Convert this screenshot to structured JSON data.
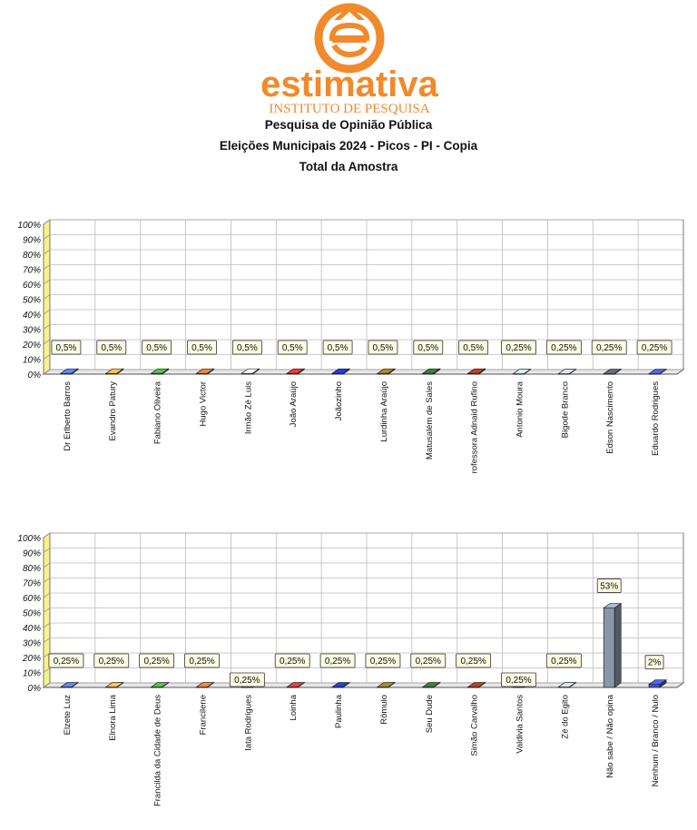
{
  "logo": {
    "brand": "estimativa",
    "subtitle": "INSTITUTO DE PESQUISA",
    "brand_color": "#f08a2c"
  },
  "header": {
    "line1": "Pesquisa de Opinião Pública",
    "line2": "Eleições Municipais 2024 - Picos - PI - Copia",
    "line3": "Total da Amostra"
  },
  "chart_data": [
    {
      "type": "bar",
      "ylim": [
        0,
        100
      ],
      "yticks": [
        "0%",
        "10%",
        "20%",
        "30%",
        "40%",
        "50%",
        "60%",
        "70%",
        "80%",
        "90%",
        "100%"
      ],
      "grid": true,
      "categories": [
        "Dr Erlberto Barros",
        "Evandro Patury",
        "Fabiano Oliveira",
        "Hugo Victor",
        "Irmão Zé Luis",
        "João Araújo",
        "Joãozinho",
        "Lurdinha Araújo",
        "Matusalém de Sales",
        "rofessora Adnaid Rufino",
        "Antonio Moura",
        "Bigode Branco",
        "Edson Nascimento",
        "Eduardo Rodrigues"
      ],
      "values": [
        0.5,
        0.5,
        0.5,
        0.5,
        0.5,
        0.5,
        0.5,
        0.5,
        0.5,
        0.5,
        0.25,
        0.25,
        0.25,
        0.25
      ],
      "labels": [
        "0,5%",
        "0,5%",
        "0,5%",
        "0,5%",
        "0,5%",
        "0,5%",
        "0,5%",
        "0,5%",
        "0,5%",
        "0,5%",
        "0,25%",
        "0,25%",
        "0,25%",
        "0,25%"
      ],
      "colors": [
        "#4a6fd0",
        "#c8a040",
        "#4a9a40",
        "#d06a30",
        "#d8d8e0",
        "#c03030",
        "#2030b0",
        "#8a7020",
        "#2a6a2a",
        "#a03020",
        "#a8c0e8",
        "#b0b8c0",
        "#505860",
        "#4050d0"
      ]
    },
    {
      "type": "bar",
      "ylim": [
        0,
        100
      ],
      "yticks": [
        "0%",
        "10%",
        "20%",
        "30%",
        "40%",
        "50%",
        "60%",
        "70%",
        "80%",
        "90%",
        "100%"
      ],
      "grid": true,
      "categories": [
        "Elzete Luz",
        "Elnora Lima",
        "Francilda da Cidade de Deus",
        "Francilene",
        "Iata Rodrigues",
        "Loinha",
        "Paulinha",
        "Rômulo",
        "Seu Dude",
        "Simão Carvalho",
        "Valdivia Santos",
        "Zé do Egito",
        "Não sabe / Não opina",
        "Nenhum / Branco / Nulo"
      ],
      "values": [
        0.25,
        0.25,
        0.25,
        0.25,
        0.25,
        0.25,
        0.25,
        0.25,
        0.25,
        0.25,
        0.25,
        0.25,
        53,
        2
      ],
      "labels": [
        "0,25%",
        "0,25%",
        "0,25%",
        "0,25%",
        "0,25%",
        "0,25%",
        "0,25%",
        "0,25%",
        "0,25%",
        "0,25%",
        "0,25%",
        "0,25%",
        "53%",
        "2%"
      ],
      "colors": [
        "#4a6fd0",
        "#c8a040",
        "#4a9a40",
        "#d06a30",
        "#d8d8e0",
        "#c03030",
        "#2030b0",
        "#8a7020",
        "#2a6a2a",
        "#a03020",
        "#a8c0e8",
        "#b0b8c0",
        "#8898a8",
        "#4050d0"
      ]
    }
  ]
}
